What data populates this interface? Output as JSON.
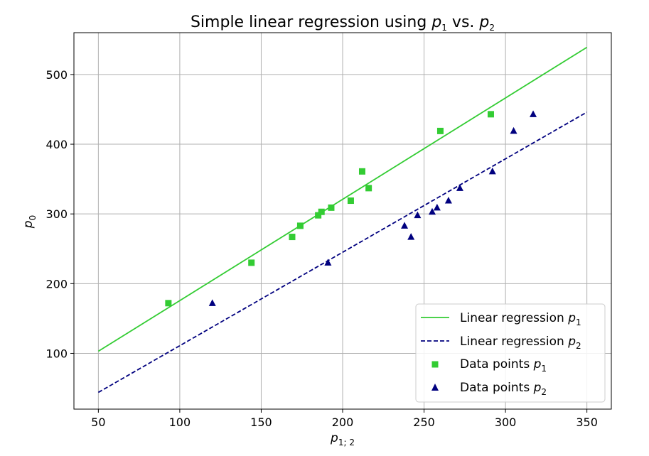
{
  "chart_data": {
    "type": "scatter",
    "title": {
      "prefix": "Simple linear regression using ",
      "a": "p",
      "a_sub": "1",
      "mid": " vs. ",
      "b": "p",
      "b_sub": "2"
    },
    "xlabel": {
      "base": "p",
      "sub": "1; 2"
    },
    "ylabel": {
      "base": "p",
      "sub": "0"
    },
    "xlim": [
      35,
      365
    ],
    "ylim": [
      20,
      560
    ],
    "xticks": [
      50,
      100,
      150,
      200,
      250,
      300,
      350
    ],
    "yticks": [
      100,
      200,
      300,
      400,
      500
    ],
    "grid": true,
    "legend_position": "bottom-right",
    "colors": {
      "p1": "#33cc33",
      "p2": "#00007f",
      "grid": "#b0b0b0"
    },
    "lines": [
      {
        "name": "Linear regression",
        "sub": "1",
        "style": "solid",
        "color": "#33cc33",
        "x": [
          50,
          350
        ],
        "y": [
          103,
          539
        ]
      },
      {
        "name": "Linear regression",
        "sub": "2",
        "style": "dashed",
        "color": "#00007f",
        "x": [
          50,
          350
        ],
        "y": [
          44,
          446
        ]
      }
    ],
    "series": [
      {
        "name": "Data points",
        "sub": "1",
        "marker": "square",
        "color": "#33cc33",
        "x": [
          93,
          144,
          169,
          174,
          185,
          187,
          193,
          205,
          212,
          216,
          260,
          291
        ],
        "y": [
          172,
          230,
          267,
          283,
          298,
          303,
          309,
          319,
          361,
          337,
          419,
          443
        ]
      },
      {
        "name": "Data points",
        "sub": "2",
        "marker": "triangle",
        "color": "#00007f",
        "x": [
          120,
          191,
          238,
          242,
          246,
          255,
          258,
          265,
          272,
          292,
          305,
          317
        ],
        "y": [
          172,
          230,
          283,
          267,
          298,
          303,
          309,
          319,
          337,
          361,
          419,
          443
        ]
      }
    ]
  }
}
